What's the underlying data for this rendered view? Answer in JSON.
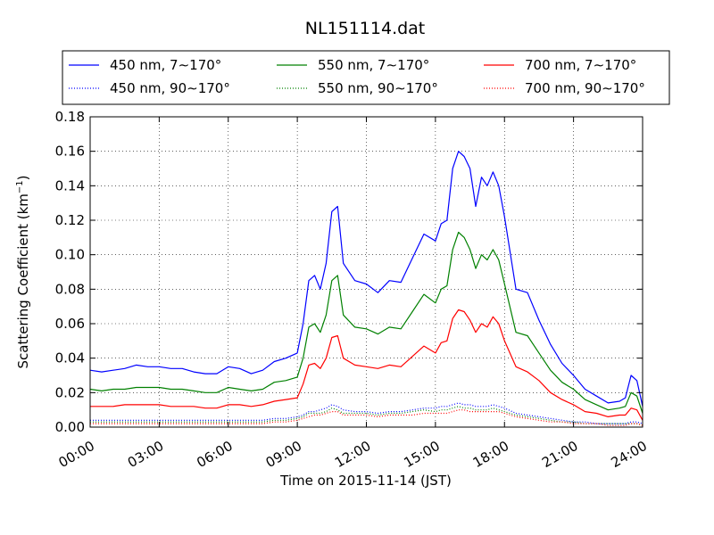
{
  "chart_data": {
    "type": "line",
    "title": "NL151114.dat",
    "xlabel": "Time on 2015-11-14 (JST)",
    "ylabel": "Scattering Coefficient (km",
    "ylabel_sup": "−1",
    "ylabel_tail": ")",
    "xlim": [
      0,
      24
    ],
    "ylim": [
      0,
      0.18
    ],
    "grid": true,
    "legend_position": "top, outside plot, 3 columns",
    "x_tick_values": [
      0,
      3,
      6,
      9,
      12,
      15,
      18,
      21,
      24
    ],
    "x_tick_labels": [
      "00:00",
      "03:00",
      "06:00",
      "09:00",
      "12:00",
      "15:00",
      "18:00",
      "21:00",
      "24:00"
    ],
    "y_tick_values": [
      0,
      0.02,
      0.04,
      0.06,
      0.08,
      0.1,
      0.12,
      0.14,
      0.16,
      0.18
    ],
    "y_tick_labels": [
      "0.00",
      "0.02",
      "0.04",
      "0.06",
      "0.08",
      "0.10",
      "0.12",
      "0.14",
      "0.16",
      "0.18"
    ],
    "x": [
      0,
      0.5,
      1,
      1.5,
      2,
      2.5,
      3,
      3.5,
      4,
      4.5,
      5,
      5.5,
      6,
      6.5,
      7,
      7.5,
      8,
      8.5,
      9,
      9.25,
      9.5,
      9.75,
      10,
      10.25,
      10.5,
      10.75,
      11,
      11.5,
      12,
      12.5,
      13,
      13.5,
      14,
      14.5,
      15,
      15.25,
      15.5,
      15.75,
      16,
      16.25,
      16.5,
      16.75,
      17,
      17.25,
      17.5,
      17.75,
      18,
      18.5,
      19,
      19.5,
      20,
      20.5,
      21,
      21.5,
      22,
      22.5,
      23,
      23.25,
      23.5,
      23.75,
      24
    ],
    "series": [
      {
        "name": "450 nm, 7∼170°",
        "color": "#0000ff",
        "style": "solid",
        "values": [
          0.033,
          0.032,
          0.033,
          0.034,
          0.036,
          0.035,
          0.035,
          0.034,
          0.034,
          0.032,
          0.031,
          0.031,
          0.035,
          0.034,
          0.031,
          0.033,
          0.038,
          0.04,
          0.043,
          0.06,
          0.085,
          0.088,
          0.08,
          0.095,
          0.125,
          0.128,
          0.095,
          0.085,
          0.083,
          0.078,
          0.085,
          0.084,
          0.098,
          0.112,
          0.108,
          0.118,
          0.12,
          0.15,
          0.16,
          0.157,
          0.15,
          0.128,
          0.145,
          0.14,
          0.148,
          0.14,
          0.122,
          0.08,
          0.078,
          0.062,
          0.048,
          0.037,
          0.03,
          0.022,
          0.018,
          0.014,
          0.015,
          0.017,
          0.03,
          0.027,
          0.012
        ]
      },
      {
        "name": "550 nm, 7∼170°",
        "color": "#008000",
        "style": "solid",
        "values": [
          0.022,
          0.021,
          0.022,
          0.022,
          0.023,
          0.023,
          0.023,
          0.022,
          0.022,
          0.021,
          0.02,
          0.02,
          0.023,
          0.022,
          0.021,
          0.022,
          0.026,
          0.027,
          0.029,
          0.04,
          0.058,
          0.06,
          0.055,
          0.065,
          0.085,
          0.088,
          0.065,
          0.058,
          0.057,
          0.054,
          0.058,
          0.057,
          0.067,
          0.077,
          0.072,
          0.08,
          0.082,
          0.103,
          0.113,
          0.11,
          0.103,
          0.092,
          0.1,
          0.097,
          0.103,
          0.097,
          0.083,
          0.055,
          0.053,
          0.043,
          0.033,
          0.026,
          0.022,
          0.016,
          0.013,
          0.01,
          0.011,
          0.012,
          0.02,
          0.018,
          0.008
        ]
      },
      {
        "name": "700 nm, 7∼170°",
        "color": "#ff0000",
        "style": "solid",
        "values": [
          0.012,
          0.012,
          0.012,
          0.013,
          0.013,
          0.013,
          0.013,
          0.012,
          0.012,
          0.012,
          0.011,
          0.011,
          0.013,
          0.013,
          0.012,
          0.013,
          0.015,
          0.016,
          0.017,
          0.025,
          0.036,
          0.037,
          0.034,
          0.04,
          0.052,
          0.053,
          0.04,
          0.036,
          0.035,
          0.034,
          0.036,
          0.035,
          0.041,
          0.047,
          0.043,
          0.049,
          0.05,
          0.063,
          0.068,
          0.067,
          0.062,
          0.055,
          0.06,
          0.058,
          0.064,
          0.06,
          0.05,
          0.035,
          0.032,
          0.027,
          0.02,
          0.016,
          0.013,
          0.009,
          0.008,
          0.006,
          0.007,
          0.007,
          0.011,
          0.01,
          0.004
        ]
      },
      {
        "name": "450 nm, 90∼170°",
        "color": "#0000ff",
        "style": "dotted",
        "values": [
          0.004,
          0.004,
          0.004,
          0.004,
          0.004,
          0.004,
          0.004,
          0.004,
          0.004,
          0.004,
          0.004,
          0.004,
          0.004,
          0.004,
          0.004,
          0.004,
          0.005,
          0.005,
          0.006,
          0.007,
          0.009,
          0.009,
          0.01,
          0.011,
          0.013,
          0.012,
          0.01,
          0.009,
          0.009,
          0.008,
          0.009,
          0.009,
          0.01,
          0.011,
          0.011,
          0.012,
          0.012,
          0.013,
          0.014,
          0.013,
          0.013,
          0.012,
          0.012,
          0.012,
          0.013,
          0.012,
          0.011,
          0.008,
          0.007,
          0.006,
          0.005,
          0.004,
          0.003,
          0.003,
          0.002,
          0.002,
          0.002,
          0.002,
          0.003,
          0.003,
          0.002
        ]
      },
      {
        "name": "550 nm, 90∼170°",
        "color": "#008000",
        "style": "dotted",
        "values": [
          0.003,
          0.003,
          0.003,
          0.003,
          0.003,
          0.003,
          0.003,
          0.003,
          0.003,
          0.003,
          0.003,
          0.003,
          0.003,
          0.003,
          0.003,
          0.003,
          0.004,
          0.004,
          0.005,
          0.006,
          0.008,
          0.008,
          0.008,
          0.009,
          0.011,
          0.01,
          0.008,
          0.008,
          0.008,
          0.007,
          0.008,
          0.008,
          0.009,
          0.01,
          0.009,
          0.01,
          0.01,
          0.011,
          0.012,
          0.011,
          0.011,
          0.01,
          0.01,
          0.01,
          0.011,
          0.01,
          0.009,
          0.007,
          0.006,
          0.005,
          0.004,
          0.003,
          0.003,
          0.002,
          0.002,
          0.002,
          0.002,
          0.002,
          0.002,
          0.002,
          0.001
        ]
      },
      {
        "name": "700 nm, 90∼170°",
        "color": "#ff0000",
        "style": "dotted",
        "values": [
          0.002,
          0.002,
          0.002,
          0.002,
          0.002,
          0.002,
          0.002,
          0.002,
          0.002,
          0.002,
          0.002,
          0.002,
          0.002,
          0.002,
          0.002,
          0.002,
          0.003,
          0.003,
          0.004,
          0.005,
          0.006,
          0.007,
          0.007,
          0.008,
          0.009,
          0.009,
          0.007,
          0.007,
          0.007,
          0.006,
          0.007,
          0.007,
          0.007,
          0.008,
          0.008,
          0.008,
          0.008,
          0.009,
          0.01,
          0.01,
          0.009,
          0.009,
          0.009,
          0.009,
          0.009,
          0.009,
          0.008,
          0.006,
          0.005,
          0.004,
          0.003,
          0.003,
          0.002,
          0.002,
          0.002,
          0.001,
          0.001,
          0.001,
          0.002,
          0.002,
          0.001
        ]
      }
    ],
    "legend_order": [
      0,
      3,
      1,
      4,
      2,
      5
    ]
  }
}
